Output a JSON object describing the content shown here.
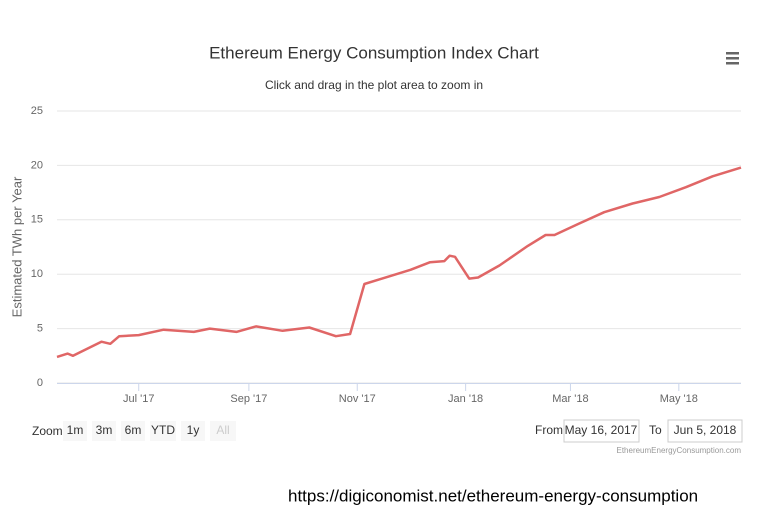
{
  "chart_data": {
    "type": "line",
    "title": "Ethereum Energy Consumption Index Chart",
    "subtitle": "Click and drag in the plot area to zoom in",
    "y_label": "Estimated TWh per Year",
    "color": "#e06666",
    "grid": true,
    "x": [
      "2017-05-16",
      "2017-05-22",
      "2017-05-25",
      "2017-06-10",
      "2017-06-15",
      "2017-06-20",
      "2017-07-01",
      "2017-07-15",
      "2017-08-01",
      "2017-08-10",
      "2017-08-25",
      "2017-09-05",
      "2017-09-20",
      "2017-10-05",
      "2017-10-20",
      "2017-10-28",
      "2017-11-05",
      "2017-11-15",
      "2017-12-01",
      "2017-12-12",
      "2017-12-20",
      "2017-12-23",
      "2017-12-26",
      "2018-01-03",
      "2018-01-08",
      "2018-01-20",
      "2018-02-05",
      "2018-02-15",
      "2018-02-20",
      "2018-03-05",
      "2018-03-20",
      "2018-04-05",
      "2018-04-20",
      "2018-05-05",
      "2018-05-20",
      "2018-06-05"
    ],
    "values": [
      2.4,
      2.7,
      2.5,
      3.8,
      3.6,
      4.3,
      4.4,
      4.9,
      4.7,
      5.0,
      4.7,
      5.2,
      4.8,
      5.1,
      4.3,
      4.5,
      9.1,
      9.6,
      10.4,
      11.1,
      11.2,
      11.7,
      11.6,
      9.6,
      9.7,
      10.8,
      12.6,
      13.6,
      13.6,
      14.6,
      15.7,
      16.5,
      17.1,
      18.0,
      19.0,
      19.8
    ],
    "xlim": [
      "2017-05-16",
      "2018-06-05"
    ],
    "xticks": [
      {
        "value": "2017-07-01",
        "label": "Jul '17"
      },
      {
        "value": "2017-09-01",
        "label": "Sep '17"
      },
      {
        "value": "2017-11-01",
        "label": "Nov '17"
      },
      {
        "value": "2018-01-01",
        "label": "Jan '18"
      },
      {
        "value": "2018-03-01",
        "label": "Mar '18"
      },
      {
        "value": "2018-05-01",
        "label": "May '18"
      }
    ],
    "ylim": [
      0,
      25
    ],
    "yticks": [
      0,
      5,
      10,
      15,
      20,
      25
    ]
  },
  "range_selector": {
    "label": "Zoom",
    "buttons": [
      "1m",
      "3m",
      "6m",
      "YTD",
      "1y",
      "All"
    ],
    "from_label": "From",
    "from": "May 16, 2017",
    "to_label": "To",
    "to": "Jun 5, 2018"
  },
  "credits": "EthereumEnergyConsumption.com",
  "source_url": "https://digiconomist.net/ethereum-energy-consumption"
}
